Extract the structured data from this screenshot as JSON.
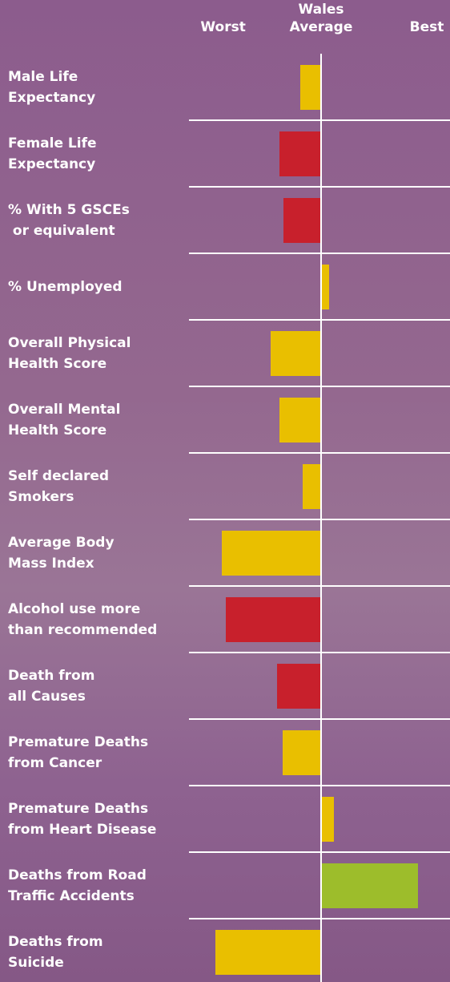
{
  "chart_data": {
    "type": "bar",
    "orientation": "horizontal",
    "categories": [
      "Male Life\nExpectancy",
      "Female Life\nExpectancy",
      "% With 5 GSCEs\n or equivalent",
      "% Unemployed",
      "Overall Physical\nHealth Score",
      "Overall Mental\nHealth Score",
      "Self declared\nSmokers",
      "Average Body\nMass Index",
      "Alcohol use more\nthan recommended",
      "Death from\nall Causes",
      "Premature Deaths\nfrom Cancer",
      "Premature Deaths\nfrom Heart Disease",
      "Deaths from Road\nTraffic Accidents",
      "Deaths from\nSuicide"
    ],
    "values": [
      -0.16,
      -0.32,
      -0.29,
      0.06,
      -0.39,
      -0.32,
      -0.14,
      -0.77,
      -0.74,
      -0.34,
      -0.3,
      0.1,
      0.75,
      -0.82
    ],
    "colors": [
      "#e9bf00",
      "#c8202c",
      "#c8202c",
      "#e9bf00",
      "#e9bf00",
      "#e9bf00",
      "#e9bf00",
      "#e9bf00",
      "#c8202c",
      "#c8202c",
      "#e9bf00",
      "#e9bf00",
      "#9dbd2b",
      "#e9bf00"
    ],
    "xlim": [
      -1,
      1
    ],
    "xticks": [
      {
        "value": -0.76,
        "label": "Worst"
      },
      {
        "value": 0,
        "label": "Wales\nAverage"
      },
      {
        "value": 0.82,
        "label": "Best"
      }
    ]
  }
}
